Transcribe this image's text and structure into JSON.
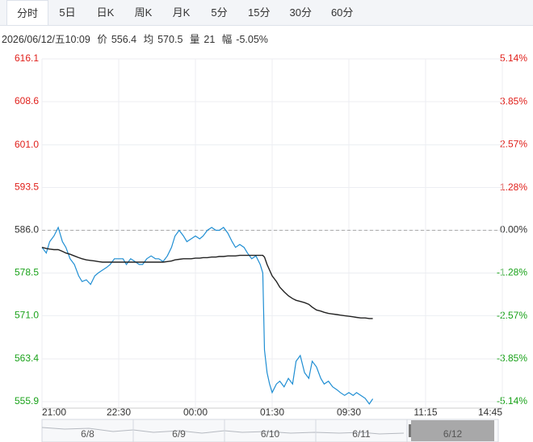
{
  "tabs": [
    "分时",
    "5日",
    "日K",
    "周K",
    "月K",
    "5分",
    "15分",
    "30分",
    "60分"
  ],
  "selected_tab": 0,
  "info": {
    "time": "2026/06/12/五10:09",
    "price": "556.4",
    "avg": "570.5",
    "volume_label": "量",
    "volume": "21",
    "change_label": "幅",
    "change": "-5.05%"
  },
  "chart_data": {
    "type": "line",
    "x": [
      0,
      5,
      9,
      14,
      19,
      24,
      28,
      33,
      38,
      43,
      47,
      52,
      57,
      62,
      66,
      71,
      76,
      80,
      85,
      90,
      95,
      99,
      104,
      109,
      114,
      118,
      123,
      128,
      133,
      137,
      142,
      147,
      152,
      156,
      161,
      166,
      170,
      175,
      180,
      185,
      189,
      194,
      199,
      204,
      208,
      213,
      218,
      223,
      227,
      232,
      237,
      241,
      246,
      251,
      256,
      259,
      261,
      264,
      267,
      270,
      275,
      279,
      284,
      289,
      294,
      298,
      303,
      308,
      313,
      317,
      322,
      327,
      331,
      336,
      341,
      346,
      350,
      355,
      360,
      365,
      369,
      374,
      379,
      384,
      388
    ],
    "series": [
      {
        "name": "价",
        "color": "#1f8ed3",
        "values": [
          583,
          582,
          584,
          585,
          586.5,
          584,
          583,
          581,
          580,
          578,
          577,
          577.3,
          576.5,
          578,
          578.5,
          579,
          579.5,
          580,
          581,
          581,
          581,
          580,
          581,
          580.5,
          580,
          580,
          581,
          581.5,
          581,
          581,
          580.5,
          581.5,
          583,
          585,
          586,
          585,
          584,
          584.5,
          585,
          584.5,
          585,
          586,
          586.5,
          586,
          586,
          586.5,
          585.5,
          584,
          583,
          583.5,
          583,
          582,
          581,
          581.5,
          580,
          578.5,
          565,
          561,
          559,
          557.5,
          559,
          559.5,
          558.5,
          560,
          559,
          563,
          564,
          561,
          560,
          563,
          562,
          560,
          559,
          559.5,
          558.5,
          558,
          557.5,
          557,
          557.5,
          557,
          557.5,
          557,
          556.5,
          555.5,
          556.4
        ]
      },
      {
        "name": "均",
        "color": "#222222",
        "values": [
          583,
          582.8,
          582.7,
          582.6,
          582.6,
          582.3,
          582,
          581.8,
          581.5,
          581.2,
          581,
          580.8,
          580.7,
          580.6,
          580.5,
          580.4,
          580.4,
          580.4,
          580.4,
          580.4,
          580.4,
          580.4,
          580.4,
          580.4,
          580.4,
          580.4,
          580.4,
          580.4,
          580.4,
          580.4,
          580.4,
          580.5,
          580.6,
          580.8,
          580.9,
          581,
          581,
          581,
          581.1,
          581.1,
          581.2,
          581.2,
          581.3,
          581.3,
          581.4,
          581.4,
          581.5,
          581.5,
          581.5,
          581.6,
          581.6,
          581.6,
          581.6,
          581.6,
          581.6,
          581.6,
          581.3,
          580,
          579,
          578,
          577,
          576,
          575.2,
          574.5,
          574,
          573.7,
          573.5,
          573.3,
          573,
          572.5,
          572,
          571.8,
          571.6,
          571.4,
          571.3,
          571.2,
          571.1,
          571,
          570.9,
          570.8,
          570.7,
          570.6,
          570.6,
          570.5,
          570.5
        ]
      }
    ],
    "xlim": [
      0,
      540
    ],
    "xticks": [
      {
        "value": 0,
        "label": "21:00"
      },
      {
        "value": 90,
        "label": "22:30"
      },
      {
        "value": 180,
        "label": "00:00"
      },
      {
        "value": 270,
        "label": "01:30"
      },
      {
        "value": 360,
        "label": "09:30"
      },
      {
        "value": 450,
        "label": "11:15"
      },
      {
        "value": 540,
        "label": "14:45"
      }
    ],
    "ylim": [
      555.9,
      616.1
    ],
    "yticks": [
      616.1,
      608.6,
      {
        "value": 601,
        "label": "601.0"
      },
      593.5,
      {
        "value": 586,
        "label": "586.0"
      },
      578.5,
      {
        "value": 571,
        "label": "571.0"
      },
      563.4,
      555.9
    ],
    "y2lim": [
      -5.14,
      5.14
    ],
    "y2ticks": [
      {
        "value": 5.14,
        "label": "5.14%"
      },
      {
        "value": 3.85,
        "label": "3.85%"
      },
      {
        "value": 2.57,
        "label": "2.57%"
      },
      {
        "value": 1.28,
        "label": "1.28%"
      },
      {
        "value": 0,
        "label": "0.00%"
      },
      {
        "value": -1.28,
        "label": "-1.28%"
      },
      {
        "value": -2.57,
        "label": "-2.57%"
      },
      {
        "value": -3.85,
        "label": "-3.85%"
      },
      {
        "value": -5.14,
        "label": "-5.14%"
      }
    ],
    "baseline": 586,
    "grid": true,
    "up_color": "#e0201b",
    "down_color": "#1aa21a",
    "flat_color": "#333333"
  },
  "navigator": {
    "labels": [
      "6/8",
      "6/9",
      "6/10",
      "6/11",
      "6/12"
    ],
    "selected": 4
  }
}
